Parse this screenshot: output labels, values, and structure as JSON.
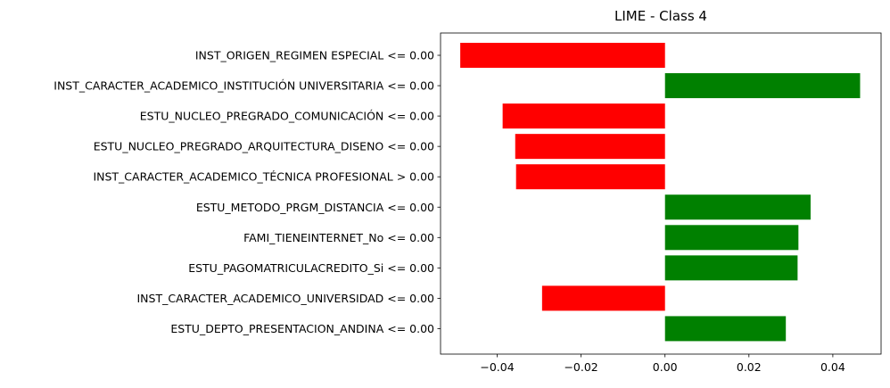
{
  "chart_data": {
    "type": "bar",
    "orientation": "horizontal",
    "title": "LIME - Class 4",
    "xlabel": "",
    "ylabel": "",
    "xlim": [
      -0.0535,
      0.0515
    ],
    "xticks": [
      -0.04,
      -0.02,
      0.0,
      0.02,
      0.04
    ],
    "xtick_labels": [
      "−0.04",
      "−0.02",
      "0.00",
      "0.02",
      "0.04"
    ],
    "grid": false,
    "categories": [
      "INST_ORIGEN_REGIMEN ESPECIAL <= 0.00",
      "INST_CARACTER_ACADEMICO_INSTITUCIÓN UNIVERSITARIA <= 0.00",
      "ESTU_NUCLEO_PREGRADO_COMUNICACIÓN <= 0.00",
      "ESTU_NUCLEO_PREGRADO_ARQUITECTURA_DISENO <= 0.00",
      "INST_CARACTER_ACADEMICO_TÉCNICA PROFESIONAL > 0.00",
      "ESTU_METODO_PRGM_DISTANCIA <= 0.00",
      "FAMI_TIENEINTERNET_No <= 0.00",
      "ESTU_PAGOMATRICULACREDITO_Si <= 0.00",
      "INST_CARACTER_ACADEMICO_UNIVERSIDAD <= 0.00",
      "ESTU_DEPTO_PRESENTACION_ANDINA <= 0.00"
    ],
    "values": [
      -0.0488,
      0.0465,
      -0.0387,
      -0.0357,
      -0.0355,
      0.0347,
      0.0318,
      0.0316,
      -0.0293,
      0.0288
    ],
    "colors": {
      "positive": "#008000",
      "negative": "#ff0000"
    }
  }
}
